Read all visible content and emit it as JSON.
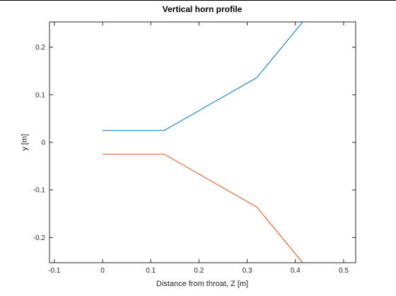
{
  "chart_data": {
    "type": "line",
    "title": "Vertical horn profile",
    "xlabel": "Distance from throat, Z [m]",
    "ylabel": "y [m]",
    "xlim": [
      -0.11,
      0.525
    ],
    "ylim": [
      -0.253,
      0.253
    ],
    "xticks": [
      -0.1,
      0,
      0.1,
      0.2,
      0.3,
      0.4,
      0.5
    ],
    "xtick_labels": [
      "-0.1",
      "0",
      "0.1",
      "0.2",
      "0.3",
      "0.4",
      "0.5"
    ],
    "yticks": [
      -0.2,
      -0.1,
      0,
      0.1,
      0.2
    ],
    "ytick_labels": [
      "-0.2",
      "-0.1",
      "0",
      "0.1",
      "0.2"
    ],
    "grid": false,
    "series": [
      {
        "color": "#0072BD",
        "x": [
          0,
          0.128,
          0.32,
          0.415
        ],
        "y": [
          0.025,
          0.025,
          0.136,
          0.253
        ]
      },
      {
        "color": "#D95319",
        "x": [
          0,
          0.128,
          0.32,
          0.415
        ],
        "y": [
          -0.025,
          -0.025,
          -0.136,
          -0.253
        ]
      }
    ]
  }
}
